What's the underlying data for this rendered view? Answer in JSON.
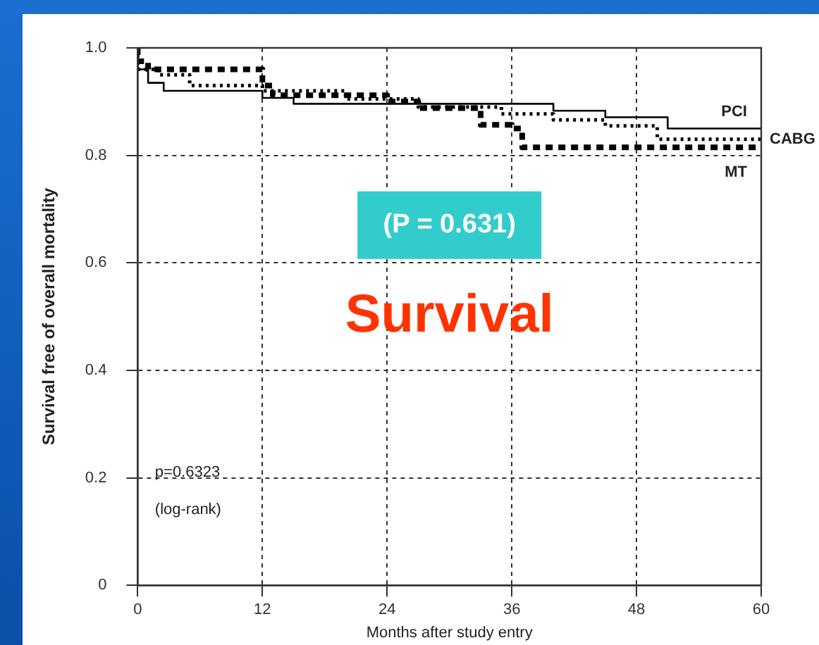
{
  "chart_data": {
    "type": "step",
    "xlabel": "Months after study entry",
    "ylabel": "Survival free of overall mortality",
    "xlim": [
      0,
      60
    ],
    "xticks": [
      0,
      12,
      24,
      36,
      48,
      60
    ],
    "ylim": [
      0,
      1
    ],
    "yticks": [
      0,
      0.2,
      0.4,
      0.6,
      0.8,
      {
        "value": 1,
        "label": "1.0"
      }
    ],
    "grid": true,
    "legend": false,
    "marker": "none",
    "series": [
      {
        "name": "PCI",
        "color": "#000000",
        "line_style": "solid",
        "x": [
          0,
          1,
          2.5,
          12,
          15,
          40,
          45,
          51,
          56,
          60
        ],
        "values": [
          1,
          0.96,
          0.935,
          0.92,
          0.907,
          0.896,
          0.883,
          0.871,
          0.85,
          0.85
        ]
      },
      {
        "name": "CABG",
        "color": "#000000",
        "line_style": "dotted",
        "x": [
          0,
          2,
          5,
          12,
          20,
          27,
          35,
          40,
          45,
          50,
          55,
          60
        ],
        "values": [
          1,
          0.96,
          0.95,
          0.93,
          0.92,
          0.905,
          0.89,
          0.877,
          0.866,
          0.855,
          0.83,
          0.83
        ]
      },
      {
        "name": "MT",
        "color": "#000000",
        "line_style": "dashed",
        "x": [
          0,
          1,
          12,
          13,
          24,
          27,
          33,
          36,
          37,
          48,
          60
        ],
        "values": [
          1,
          0.975,
          0.96,
          0.93,
          0.912,
          0.9,
          0.888,
          0.857,
          0.85,
          0.815,
          0.815
        ]
      }
    ],
    "annotations": [
      "(P = 0.631)",
      "Survival",
      "p=0.6323",
      "(log-rank)"
    ]
  }
}
